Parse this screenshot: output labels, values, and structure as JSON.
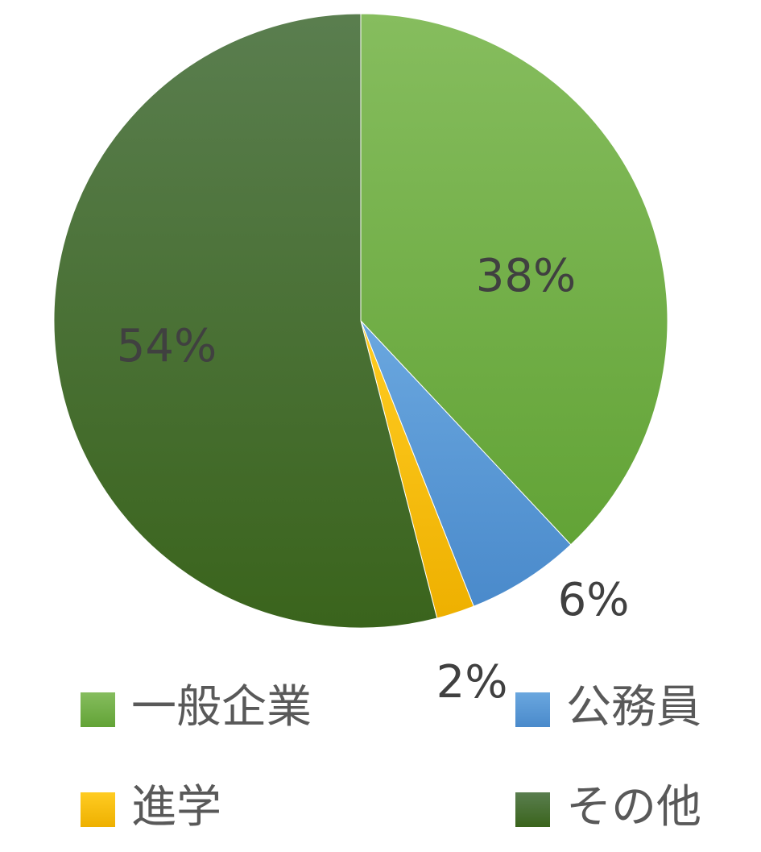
{
  "chart_data": {
    "type": "pie",
    "categories": [
      "一般企業",
      "公務員",
      "進学",
      "その他"
    ],
    "values": [
      38,
      6,
      2,
      54
    ],
    "data_labels": [
      "38%",
      "6%",
      "2%",
      "54%"
    ],
    "colors": [
      "#70ad47",
      "#5b9bd5",
      "#ffc000",
      "#3f6b22"
    ],
    "gradient_tops": [
      "#86bd5e",
      "#6aa7df",
      "#ffcc22",
      "#5a7e4f"
    ],
    "gradient_bottoms": [
      "#62a336",
      "#4a8acb",
      "#eeb000",
      "#3a641c"
    ],
    "start_angle_deg": 0,
    "direction": "clockwise",
    "legend_position": "bottom",
    "legend": [
      "一般企業",
      "公務員",
      "進学",
      "その他"
    ]
  }
}
